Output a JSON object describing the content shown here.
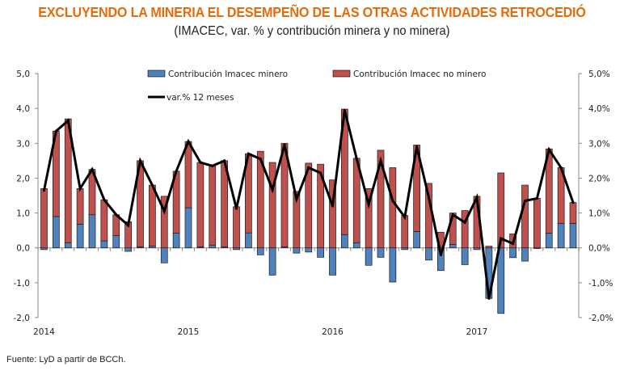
{
  "title": "EXCLUYENDO LA MINERIA EL DESEMPEÑO DE LAS OTRAS ACTIVIDADES RETROCEDIÓ",
  "subtitle": "(IMACEC, var. % y contribución minera y no minera)",
  "source": "Fuente: LyD a partir de BCCh.",
  "colors": {
    "minero": "#4f81bd",
    "no_minero": "#c0504d",
    "line": "#000000",
    "title": "#e46c0a"
  },
  "chart_data": {
    "type": "bar",
    "stacked": true,
    "title": "EXCLUYENDO LA MINERIA EL DESEMPEÑO DE LAS OTRAS ACTIVIDADES RETROCEDIÓ",
    "subtitle": "(IMACEC, var. % y contribución minera y no minera)",
    "xlabel": "",
    "ylabel": "",
    "ylim": [
      -2,
      5
    ],
    "y2lim": [
      -2,
      5
    ],
    "yticks": [
      "5,0",
      "4,0",
      "3,0",
      "2,0",
      "1,0",
      "0,0",
      "-1,0",
      "-2,0"
    ],
    "y2ticks": [
      "5,0%",
      "4,0%",
      "3,0%",
      "2,0%",
      "1,0%",
      "0,0%",
      "-1,0%",
      "-2,0%"
    ],
    "ytick_values": [
      5,
      4,
      3,
      2,
      1,
      0,
      -1,
      -2
    ],
    "xtick_labels": [
      {
        "label": "2014",
        "index": 0
      },
      {
        "label": "2015",
        "index": 12
      },
      {
        "label": "2016",
        "index": 24
      },
      {
        "label": "2017",
        "index": 36
      }
    ],
    "legend_position": "top-center",
    "grid": false,
    "categories": [
      "2014-01",
      "2014-02",
      "2014-03",
      "2014-04",
      "2014-05",
      "2014-06",
      "2014-07",
      "2014-08",
      "2014-09",
      "2014-10",
      "2014-11",
      "2014-12",
      "2015-01",
      "2015-02",
      "2015-03",
      "2015-04",
      "2015-05",
      "2015-06",
      "2015-07",
      "2015-08",
      "2015-09",
      "2015-10",
      "2015-11",
      "2015-12",
      "2016-01",
      "2016-02",
      "2016-03",
      "2016-04",
      "2016-05",
      "2016-06",
      "2016-07",
      "2016-08",
      "2016-09",
      "2016-10",
      "2016-11",
      "2016-12",
      "2017-01",
      "2017-02",
      "2017-03",
      "2017-04",
      "2017-05",
      "2017-06",
      "2017-07",
      "2017-08",
      "2017-09"
    ],
    "series": [
      {
        "name": "Contribución Imacec minero",
        "type": "bar",
        "values": [
          -0.05,
          0.9,
          0.15,
          0.68,
          0.95,
          0.2,
          0.35,
          -0.1,
          0.03,
          0.05,
          -0.43,
          0.42,
          1.15,
          0.03,
          0.08,
          0.03,
          -0.05,
          0.43,
          -0.2,
          -0.78,
          0.03,
          -0.15,
          -0.12,
          -0.27,
          -0.78,
          0.38,
          0.15,
          -0.5,
          -0.27,
          -0.98,
          -0.05,
          0.47,
          -0.35,
          -0.65,
          0.1,
          -0.48,
          -0.05,
          -1.45,
          -1.88,
          -0.28,
          -0.38,
          0.0,
          0.42,
          0.7,
          0.7
        ]
      },
      {
        "name": "Contribución Imacec no minero",
        "type": "bar",
        "values": [
          1.7,
          2.45,
          3.55,
          1.02,
          1.3,
          1.18,
          0.6,
          0.75,
          2.47,
          1.75,
          1.48,
          1.78,
          1.9,
          2.42,
          2.27,
          2.47,
          1.18,
          2.27,
          2.77,
          2.45,
          2.97,
          1.62,
          2.43,
          2.4,
          1.95,
          3.6,
          2.42,
          1.7,
          2.8,
          2.3,
          0.93,
          2.48,
          1.85,
          0.45,
          0.9,
          1.07,
          1.48,
          0.05,
          2.15,
          0.4,
          1.8,
          1.42,
          2.42,
          1.6,
          0.6
        ]
      },
      {
        "name": "var.% 12 meses",
        "type": "line",
        "axis": "right",
        "values": [
          1.65,
          3.35,
          3.65,
          1.7,
          2.25,
          1.38,
          0.95,
          0.65,
          2.5,
          1.8,
          1.05,
          2.2,
          3.05,
          2.45,
          2.35,
          2.5,
          1.13,
          2.7,
          2.55,
          1.67,
          2.95,
          1.4,
          2.3,
          2.15,
          1.2,
          3.95,
          2.55,
          1.25,
          2.5,
          1.35,
          0.88,
          2.9,
          1.45,
          -0.2,
          0.95,
          0.73,
          1.45,
          -1.45,
          0.27,
          0.12,
          1.35,
          1.42,
          2.82,
          2.3,
          1.3
        ]
      }
    ]
  }
}
